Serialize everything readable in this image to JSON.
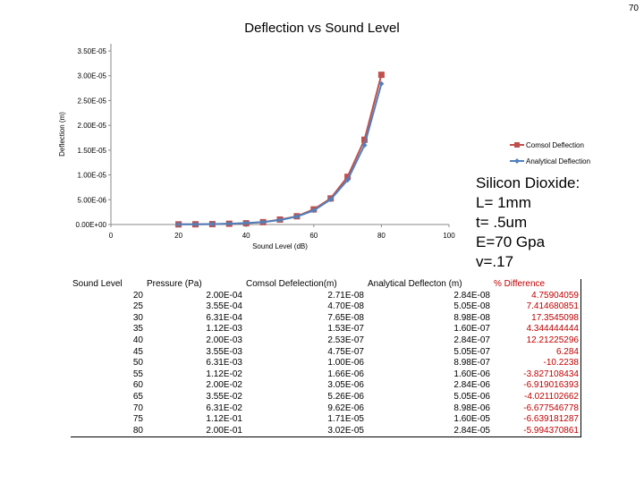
{
  "page_number": "70",
  "chart_data": {
    "type": "line",
    "title": "Deflection vs Sound Level",
    "xlabel": "Sound Level (dB)",
    "ylabel": "Deflection (m)",
    "xlim": [
      0,
      100
    ],
    "ylim": [
      0,
      3.5e-05
    ],
    "x_ticks": [
      "0",
      "20",
      "40",
      "60",
      "80",
      "100"
    ],
    "y_ticks": [
      "0.00E+00",
      "5.00E-06",
      "1.00E-05",
      "1.50E-05",
      "2.00E-05",
      "2.50E-05",
      "3.00E-05",
      "3.50E-05"
    ],
    "x": [
      20,
      25,
      30,
      35,
      40,
      45,
      50,
      55,
      60,
      65,
      70,
      75,
      80
    ],
    "series": [
      {
        "name": "Comsol Deflection",
        "color": "#c0504d",
        "marker": "square",
        "values": [
          2.71e-08,
          4.7e-08,
          7.65e-08,
          1.53e-07,
          2.53e-07,
          4.75e-07,
          1e-06,
          1.66e-06,
          3.05e-06,
          5.26e-06,
          9.62e-06,
          1.71e-05,
          3.02e-05
        ]
      },
      {
        "name": "Analytical Deflection",
        "color": "#4f81bd",
        "marker": "diamond",
        "values": [
          2.84e-08,
          5.05e-08,
          8.98e-08,
          1.6e-07,
          2.84e-07,
          5.05e-07,
          8.98e-07,
          1.6e-06,
          2.84e-06,
          5.05e-06,
          8.98e-06,
          1.6e-05,
          2.84e-05
        ]
      }
    ],
    "legend": "right",
    "grid": false
  },
  "material": {
    "lines": [
      "Silicon Dioxide:",
      "L= 1mm",
      "t= .5um",
      "E=70 Gpa",
      "v=.17"
    ]
  },
  "table": {
    "headers": [
      "Sound Level",
      "Pressure (Pa)",
      "Comsol Defelection(m)",
      "Analytical Deflecton (m)",
      "% Difference"
    ],
    "rows": [
      [
        "20",
        "2.00E-04",
        "2.71E-08",
        "2.84E-08",
        "4.75904059"
      ],
      [
        "25",
        "3.55E-04",
        "4.70E-08",
        "5.05E-08",
        "7.414680851"
      ],
      [
        "30",
        "6.31E-04",
        "7.65E-08",
        "8.98E-08",
        "17.3545098"
      ],
      [
        "35",
        "1.12E-03",
        "1.53E-07",
        "1.60E-07",
        "4.344444444"
      ],
      [
        "40",
        "2.00E-03",
        "2.53E-07",
        "2.84E-07",
        "12.21225296"
      ],
      [
        "45",
        "3.55E-03",
        "4.75E-07",
        "5.05E-07",
        "6.284"
      ],
      [
        "50",
        "6.31E-03",
        "1.00E-06",
        "8.98E-07",
        "-10.2238"
      ],
      [
        "55",
        "1.12E-02",
        "1.66E-06",
        "1.60E-06",
        "-3.827108434"
      ],
      [
        "60",
        "2.00E-02",
        "3.05E-06",
        "2.84E-06",
        "-6.919016393"
      ],
      [
        "65",
        "3.55E-02",
        "5.26E-06",
        "5.05E-06",
        "-4.021102662"
      ],
      [
        "70",
        "6.31E-02",
        "9.62E-06",
        "8.98E-06",
        "-6.677546778"
      ],
      [
        "75",
        "1.12E-01",
        "1.71E-05",
        "1.60E-05",
        "-6.639181287"
      ],
      [
        "80",
        "2.00E-01",
        "3.02E-05",
        "2.84E-05",
        "-5.994370861"
      ]
    ]
  }
}
